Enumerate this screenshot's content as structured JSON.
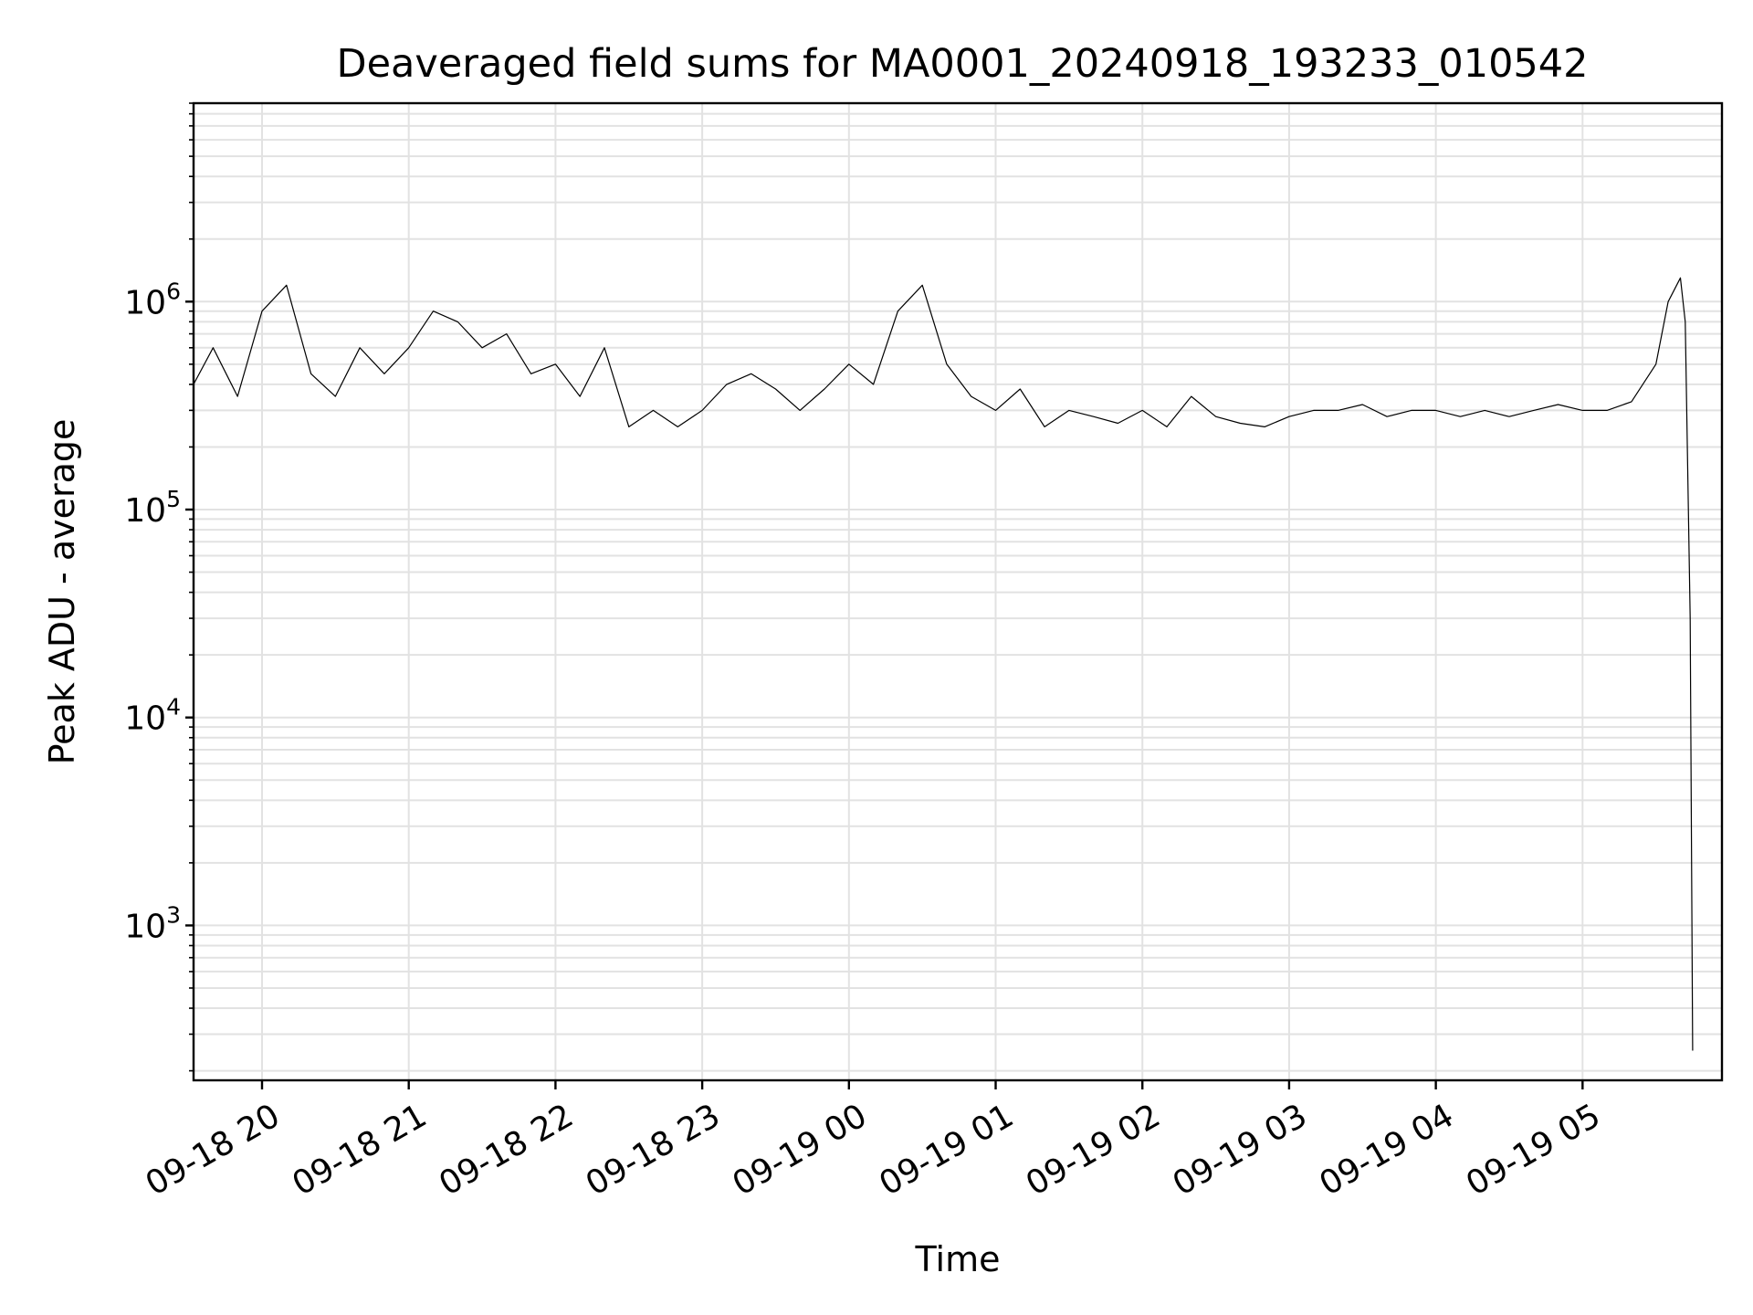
{
  "chart_data": {
    "type": "line",
    "title": "Deaveraged field sums for MA0001_20240918_193233_010542",
    "xlabel": "Time",
    "ylabel": "Peak ADU - average",
    "yscale": "log",
    "ylim": [
      180,
      9000000
    ],
    "xlim": [
      "2024-09-18 19:32",
      "2024-09-19 05:57"
    ],
    "grid": true,
    "x_ticks": [
      {
        "t": "2024-09-18 20:00",
        "label": "09-18 20"
      },
      {
        "t": "2024-09-18 21:00",
        "label": "09-18 21"
      },
      {
        "t": "2024-09-18 22:00",
        "label": "09-18 22"
      },
      {
        "t": "2024-09-18 23:00",
        "label": "09-18 23"
      },
      {
        "t": "2024-09-19 00:00",
        "label": "09-19 00"
      },
      {
        "t": "2024-09-19 01:00",
        "label": "09-19 01"
      },
      {
        "t": "2024-09-19 02:00",
        "label": "09-19 02"
      },
      {
        "t": "2024-09-19 03:00",
        "label": "09-19 03"
      },
      {
        "t": "2024-09-19 04:00",
        "label": "09-19 04"
      },
      {
        "t": "2024-09-19 05:00",
        "label": "09-19 05"
      }
    ],
    "y_ticks": [
      {
        "value": 1000,
        "base": "10",
        "exp": "3"
      },
      {
        "value": 10000,
        "base": "10",
        "exp": "4"
      },
      {
        "value": 100000,
        "base": "10",
        "exp": "5"
      },
      {
        "value": 1000000,
        "base": "10",
        "exp": "6"
      }
    ],
    "series": [
      {
        "color": "#000000",
        "x": [
          "2024-09-18 19:32",
          "2024-09-18 19:40",
          "2024-09-18 19:50",
          "2024-09-18 20:00",
          "2024-09-18 20:10",
          "2024-09-18 20:20",
          "2024-09-18 20:30",
          "2024-09-18 20:40",
          "2024-09-18 20:50",
          "2024-09-18 21:00",
          "2024-09-18 21:10",
          "2024-09-18 21:20",
          "2024-09-18 21:30",
          "2024-09-18 21:40",
          "2024-09-18 21:50",
          "2024-09-18 22:00",
          "2024-09-18 22:10",
          "2024-09-18 22:20",
          "2024-09-18 22:30",
          "2024-09-18 22:40",
          "2024-09-18 22:50",
          "2024-09-18 23:00",
          "2024-09-18 23:10",
          "2024-09-18 23:20",
          "2024-09-18 23:30",
          "2024-09-18 23:40",
          "2024-09-18 23:50",
          "2024-09-19 00:00",
          "2024-09-19 00:10",
          "2024-09-19 00:20",
          "2024-09-19 00:30",
          "2024-09-19 00:40",
          "2024-09-19 00:50",
          "2024-09-19 01:00",
          "2024-09-19 01:10",
          "2024-09-19 01:20",
          "2024-09-19 01:30",
          "2024-09-19 01:40",
          "2024-09-19 01:50",
          "2024-09-19 02:00",
          "2024-09-19 02:10",
          "2024-09-19 02:20",
          "2024-09-19 02:30",
          "2024-09-19 02:40",
          "2024-09-19 02:50",
          "2024-09-19 03:00",
          "2024-09-19 03:10",
          "2024-09-19 03:20",
          "2024-09-19 03:30",
          "2024-09-19 03:40",
          "2024-09-19 03:50",
          "2024-09-19 04:00",
          "2024-09-19 04:10",
          "2024-09-19 04:20",
          "2024-09-19 04:30",
          "2024-09-19 04:40",
          "2024-09-19 04:50",
          "2024-09-19 05:00",
          "2024-09-19 05:10",
          "2024-09-19 05:20",
          "2024-09-19 05:30",
          "2024-09-19 05:35",
          "2024-09-19 05:40",
          "2024-09-19 05:42",
          "2024-09-19 05:44",
          "2024-09-19 05:45"
        ],
        "y": [
          400000,
          600000,
          350000,
          900000,
          1200000,
          450000,
          350000,
          600000,
          450000,
          600000,
          900000,
          800000,
          600000,
          700000,
          450000,
          500000,
          350000,
          600000,
          250000,
          300000,
          250000,
          300000,
          400000,
          450000,
          380000,
          300000,
          380000,
          500000,
          400000,
          900000,
          1200000,
          500000,
          350000,
          300000,
          380000,
          250000,
          300000,
          280000,
          260000,
          300000,
          250000,
          350000,
          280000,
          260000,
          250000,
          280000,
          300000,
          300000,
          320000,
          280000,
          300000,
          300000,
          280000,
          300000,
          280000,
          300000,
          320000,
          300000,
          300000,
          330000,
          500000,
          1000000,
          1300000,
          800000,
          30000,
          250
        ]
      }
    ]
  }
}
